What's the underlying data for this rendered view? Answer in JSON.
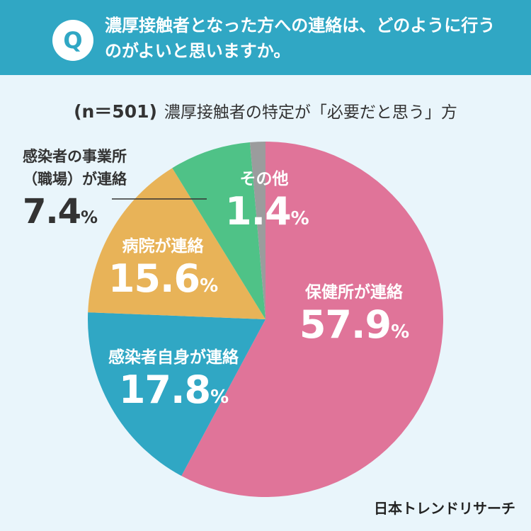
{
  "header": {
    "badge": "Q",
    "question": "濃厚接触者となった方への連絡は、どのように行うのがよいと思いますか。"
  },
  "subtitle": {
    "n": "(n＝501)",
    "text": "濃厚接触者の特定が「必要だと思う」方"
  },
  "brand": "日本トレンドリサーチ",
  "colors": {
    "header": "#30a7c4",
    "background": "#e9f5fb",
    "hoken": "#e07499",
    "jishin": "#30a7c4",
    "byoin": "#e8b358",
    "jigyosho": "#4fc287",
    "sonota": "#9b9c9d"
  },
  "chart_data": {
    "type": "pie",
    "title": "濃厚接触者の特定が「必要だと思う」方",
    "n": 501,
    "unit": "%",
    "start": "top",
    "direction": "clockwise",
    "slices": [
      {
        "name": "保健所が連絡",
        "value": 57.9,
        "value_label": "57.9",
        "color": "#e07499"
      },
      {
        "name": "感染者自身が連絡",
        "value": 17.8,
        "value_label": "17.8",
        "color": "#30a7c4"
      },
      {
        "name": "病院が連絡",
        "value": 15.6,
        "value_label": "15.6",
        "color": "#e8b358"
      },
      {
        "name": "感染者の事業所（職場）が連絡",
        "value": 7.4,
        "value_label": "7.4",
        "color": "#4fc287"
      },
      {
        "name": "その他",
        "value": 1.4,
        "value_label": "1.4",
        "color": "#9b9c9d"
      }
    ]
  }
}
